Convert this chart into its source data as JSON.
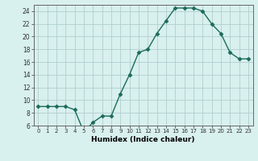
{
  "x": [
    0,
    1,
    2,
    3,
    4,
    5,
    6,
    7,
    8,
    9,
    10,
    11,
    12,
    13,
    14,
    15,
    16,
    17,
    18,
    19,
    20,
    21,
    22,
    23
  ],
  "y": [
    9,
    9,
    9,
    9,
    8.5,
    5,
    6.5,
    7.5,
    7.5,
    11,
    14,
    17.5,
    18,
    20.5,
    22.5,
    24.5,
    24.5,
    24.5,
    24,
    22,
    20.5,
    17.5,
    16.5,
    16.5
  ],
  "line_color": "#1a6b5a",
  "bg_color": "#d8f0ee",
  "grid_color": "#b0cece",
  "xlabel": "Humidex (Indice chaleur)",
  "xlim_lo": -0.5,
  "xlim_hi": 23.5,
  "ylim_lo": 6,
  "ylim_hi": 25,
  "yticks": [
    6,
    8,
    10,
    12,
    14,
    16,
    18,
    20,
    22,
    24
  ],
  "xticks": [
    0,
    1,
    2,
    3,
    4,
    5,
    6,
    7,
    8,
    9,
    10,
    11,
    12,
    13,
    14,
    15,
    16,
    17,
    18,
    19,
    20,
    21,
    22,
    23
  ],
  "xtick_labels": [
    "0",
    "1",
    "2",
    "3",
    "4",
    "5",
    "6",
    "7",
    "8",
    "9",
    "10",
    "11",
    "12",
    "13",
    "14",
    "15",
    "16",
    "17",
    "18",
    "19",
    "20",
    "21",
    "22",
    "23"
  ],
  "marker": "D",
  "marker_size": 2.5,
  "line_width": 1.0,
  "xlabel_fontsize": 6.5,
  "xtick_fontsize": 5.0,
  "ytick_fontsize": 5.5
}
